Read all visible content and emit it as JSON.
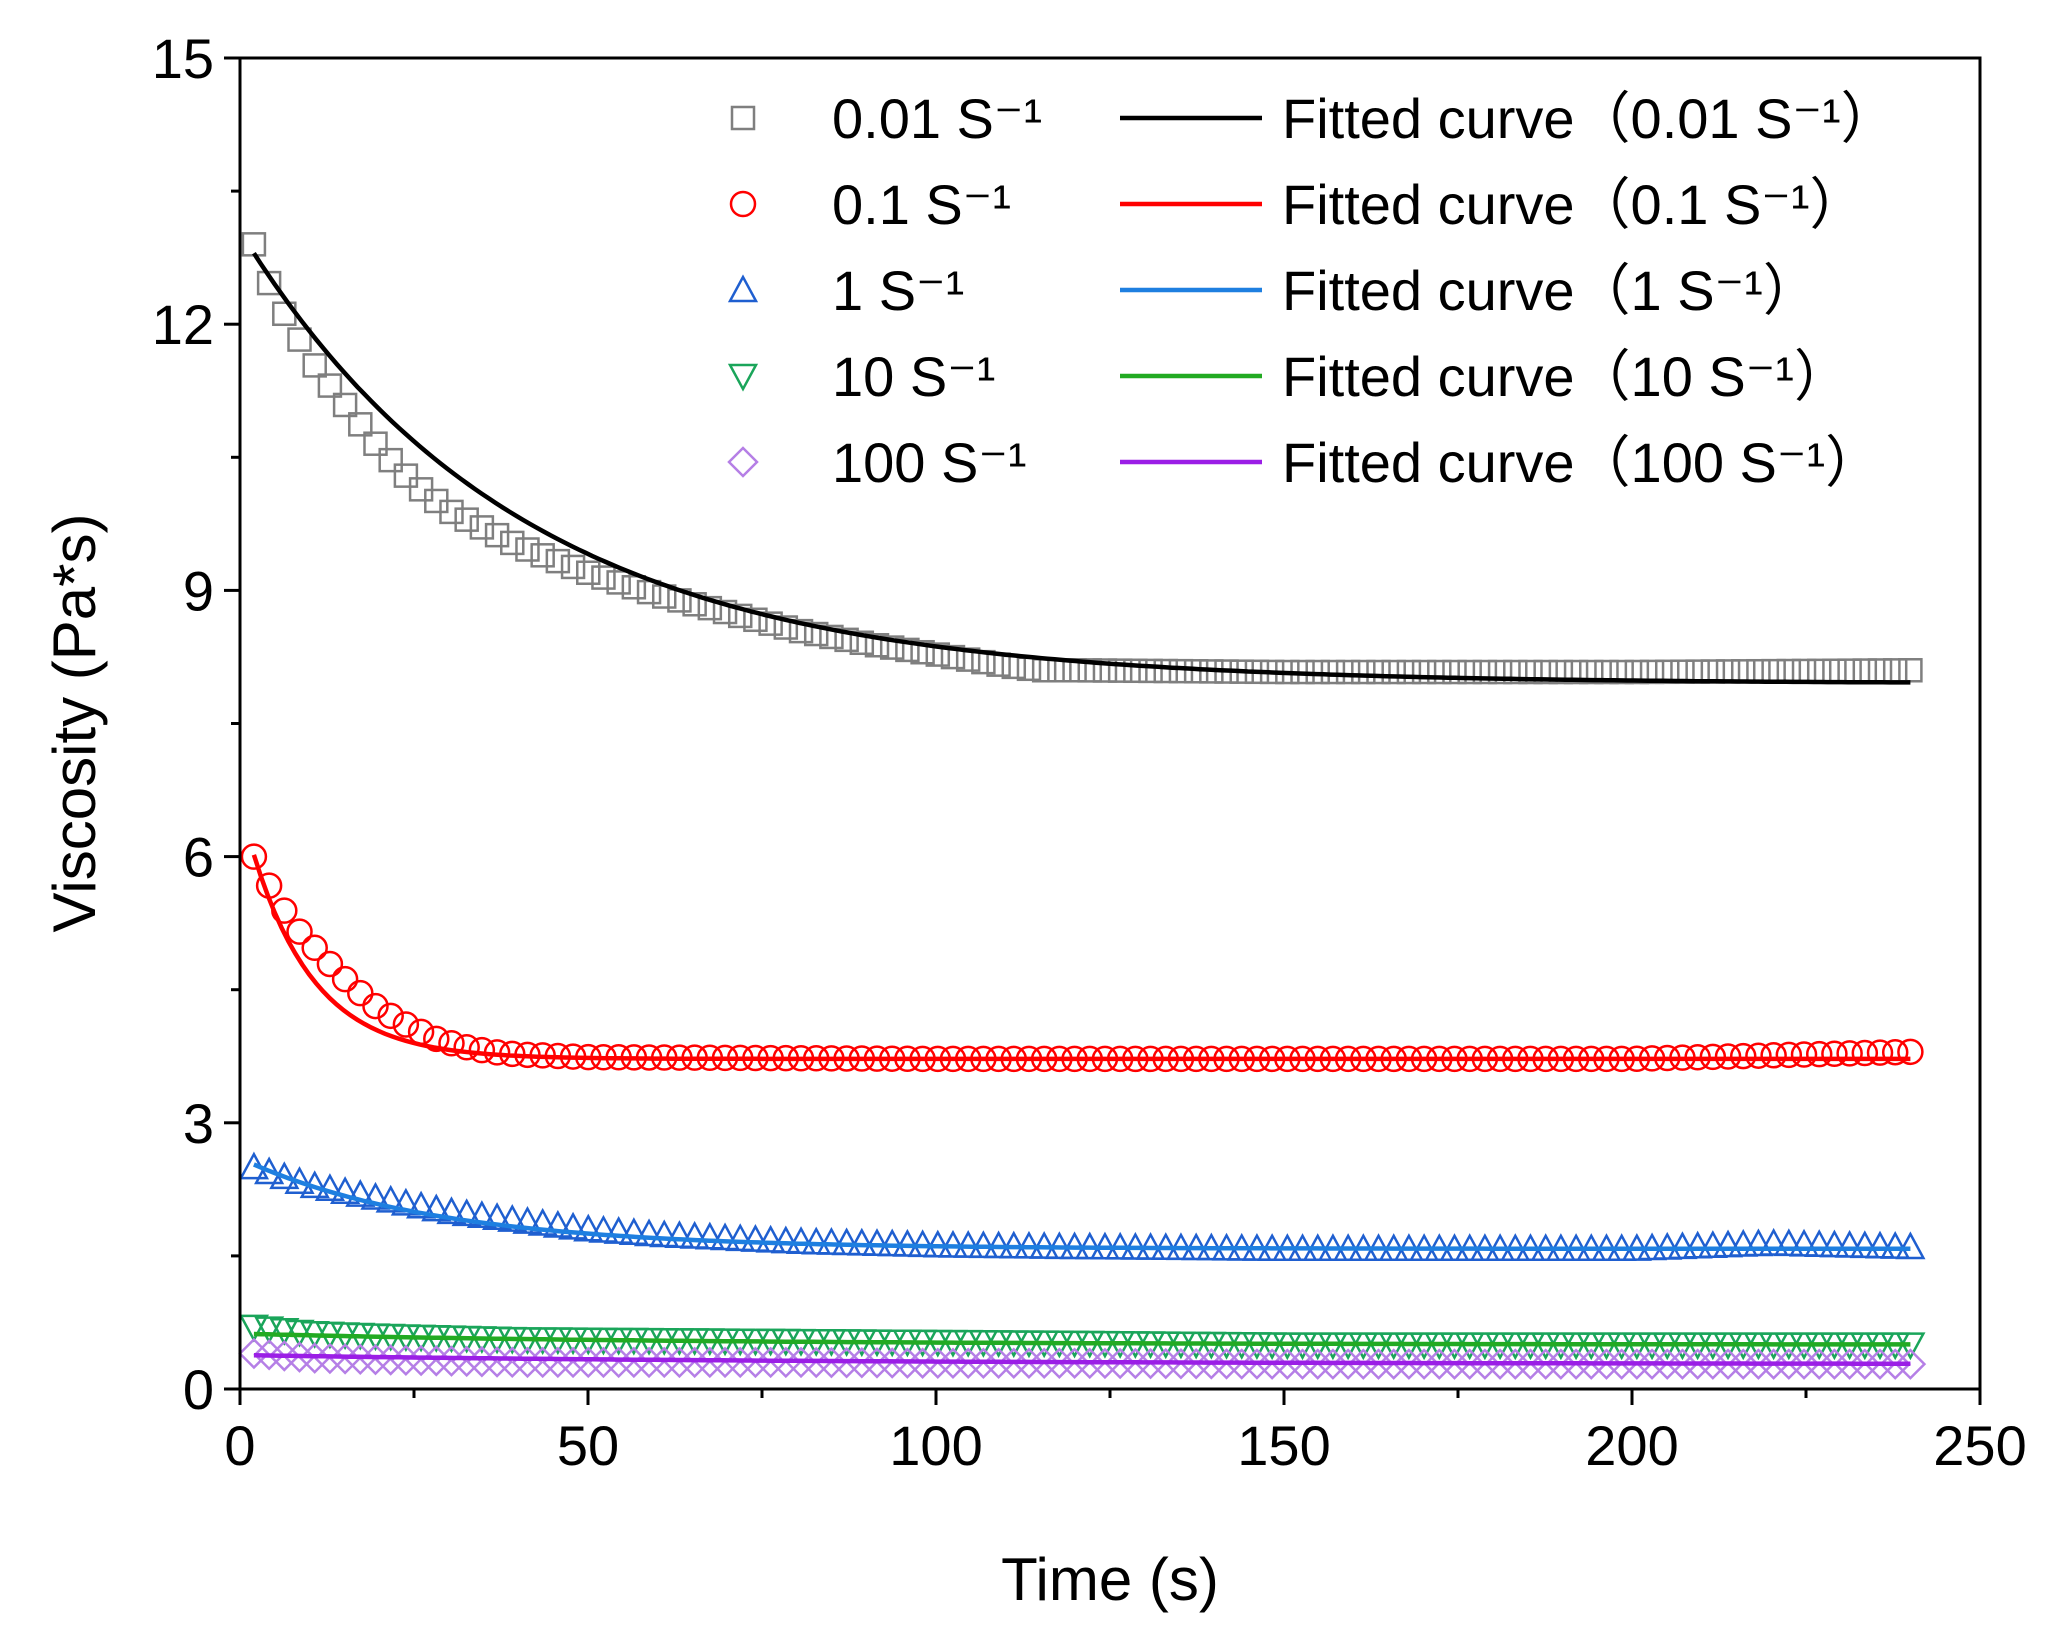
{
  "chart_data": {
    "type": "scatter",
    "title": "",
    "xlabel": "Time (s)",
    "ylabel": "Viscosity (Pa*s)",
    "xlim": [
      0,
      250
    ],
    "ylim": [
      0,
      15
    ],
    "x_ticks": [
      "0",
      "50",
      "100",
      "150",
      "200",
      "250"
    ],
    "y_ticks": [
      "0",
      "3",
      "6",
      "9",
      "12",
      "15"
    ],
    "grid": false,
    "legend_position": "top-right",
    "series": [
      {
        "name": "0.01 S⁻¹",
        "marker": "square",
        "color": "#7f7f7f",
        "fit_name": "Fitted curve（0.01 S⁻¹）",
        "fit_color": "#000000",
        "fit": {
          "y_inf": 7.95,
          "amplitude": 4.85,
          "tau": 40.0
        },
        "x": [
          2,
          5,
          8,
          11,
          15,
          20,
          25,
          30,
          40,
          50,
          60,
          70,
          80,
          90,
          100,
          110,
          115,
          120,
          150,
          200,
          240
        ],
        "y": [
          12.9,
          12.3,
          11.9,
          11.5,
          11.1,
          10.6,
          10.2,
          9.9,
          9.5,
          9.2,
          8.95,
          8.75,
          8.55,
          8.4,
          8.28,
          8.15,
          8.1,
          8.1,
          8.08,
          8.08,
          8.1
        ]
      },
      {
        "name": "0.1 S⁻¹",
        "marker": "circle",
        "color": "#ff0000",
        "fit_name": "Fitted curve（0.1 S⁻¹）",
        "fit_color": "#ff0000",
        "fit": {
          "y_inf": 3.72,
          "amplitude": 2.3,
          "tau": 9.0
        },
        "x": [
          2,
          5,
          8,
          11,
          14,
          17,
          20,
          24,
          28,
          32,
          36,
          40,
          50,
          100,
          150,
          200,
          240
        ],
        "y": [
          6.0,
          5.55,
          5.2,
          4.95,
          4.7,
          4.48,
          4.28,
          4.1,
          3.95,
          3.86,
          3.8,
          3.77,
          3.74,
          3.72,
          3.72,
          3.72,
          3.8
        ]
      },
      {
        "name": "1 S⁻¹",
        "marker": "triangle-up",
        "color": "#1f5fd0",
        "fit_name": "Fitted curve（1 S⁻¹）",
        "fit_color": "#1e7fe0",
        "fit": {
          "y_inf": 1.58,
          "amplitude": 0.95,
          "tau": 28.0
        },
        "x": [
          2,
          10,
          20,
          30,
          40,
          50,
          60,
          80,
          100,
          120,
          150,
          200,
          220,
          240
        ],
        "y": [
          2.5,
          2.3,
          2.15,
          2.0,
          1.9,
          1.8,
          1.74,
          1.66,
          1.62,
          1.6,
          1.58,
          1.58,
          1.64,
          1.6
        ]
      },
      {
        "name": "10 S⁻¹",
        "marker": "triangle-down",
        "color": "#1aa55a",
        "fit_name": "Fitted curve（10 S⁻¹）",
        "fit_color": "#22aa22",
        "fit": {
          "y_inf": 0.5,
          "amplitude": 0.12,
          "tau": 60.0
        },
        "x": [
          2,
          10,
          20,
          40,
          60,
          80,
          100,
          120,
          150,
          180,
          200,
          240
        ],
        "y": [
          0.7,
          0.63,
          0.6,
          0.56,
          0.55,
          0.54,
          0.53,
          0.52,
          0.5,
          0.5,
          0.5,
          0.5
        ]
      },
      {
        "name": "100 S⁻¹",
        "marker": "diamond",
        "color": "#b57fe6",
        "fit_name": "Fitted curve（100 S⁻¹）",
        "fit_color": "#9b1ee6",
        "fit": {
          "y_inf": 0.28,
          "amplitude": 0.1,
          "tau": 80.0
        },
        "x": [
          2,
          10,
          20,
          40,
          60,
          80,
          100,
          120,
          150,
          180,
          200,
          240
        ],
        "y": [
          0.4,
          0.35,
          0.33,
          0.3,
          0.3,
          0.3,
          0.29,
          0.29,
          0.28,
          0.28,
          0.28,
          0.28
        ]
      }
    ]
  }
}
